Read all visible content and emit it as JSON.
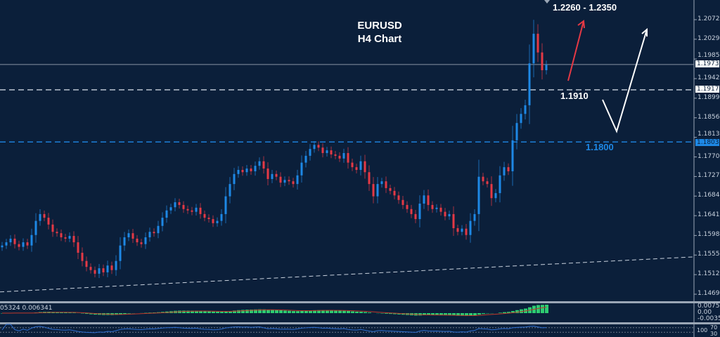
{
  "chart_data": {
    "type": "candlestick",
    "symbol": "EURUSD",
    "timeframe": "H4 Chart",
    "y_axis_ticks": [
      "1.20720",
      "1.20290",
      "1.19855",
      "1.19425",
      "1.18995",
      "1.18565",
      "1.18135",
      "1.17705",
      "1.17275",
      "1.16845",
      "1.16415",
      "1.15980",
      "1.15550",
      "1.15120",
      "1.14690"
    ],
    "ylim": [
      1.1456,
      1.21
    ],
    "closes": [
      1.1576,
      1.1583,
      1.1591,
      1.1579,
      1.1573,
      1.1583,
      1.1576,
      1.1599,
      1.163,
      1.1645,
      1.1637,
      1.1622,
      1.1606,
      1.1603,
      1.1594,
      1.1591,
      1.1597,
      1.1583,
      1.156,
      1.1542,
      1.1529,
      1.1522,
      1.1514,
      1.1526,
      1.1517,
      1.1532,
      1.1522,
      1.1542,
      1.1576,
      1.1594,
      1.1603,
      1.1591,
      1.1583,
      1.1579,
      1.1594,
      1.1606,
      1.1603,
      1.1619,
      1.1637,
      1.1653,
      1.166,
      1.1671,
      1.1665,
      1.1656,
      1.1653,
      1.165,
      1.1659,
      1.1645,
      1.1637,
      1.1634,
      1.1625,
      1.163,
      1.1645,
      1.1684,
      1.1711,
      1.1733,
      1.1742,
      1.1737,
      1.1745,
      1.1739,
      1.1751,
      1.1761,
      1.1745,
      1.1722,
      1.1733,
      1.1727,
      1.1714,
      1.172,
      1.1717,
      1.1711,
      1.173,
      1.1758,
      1.1773,
      1.1788,
      1.1797,
      1.1791,
      1.1779,
      1.1785,
      1.1776,
      1.1773,
      1.1767,
      1.1779,
      1.1758,
      1.1748,
      1.1742,
      1.1761,
      1.1737,
      1.1711,
      1.1684,
      1.1711,
      1.1717,
      1.1702,
      1.1696,
      1.1686,
      1.1676,
      1.1665,
      1.1656,
      1.1645,
      1.1634,
      1.1668,
      1.1686,
      1.1665,
      1.1656,
      1.1659,
      1.165,
      1.164,
      1.1645,
      1.1614,
      1.1606,
      1.1613,
      1.1599,
      1.163,
      1.1645,
      1.1727,
      1.1717,
      1.1711,
      1.168,
      1.1691,
      1.173,
      1.1748,
      1.1739,
      1.1807,
      1.1845,
      1.1865,
      1.1884,
      1.1976,
      1.2041,
      1.2,
      1.1961,
      1.1973
    ],
    "current_price": {
      "value": 1.19735,
      "label": "1.19735"
    },
    "levels": [
      {
        "value": 1.19179,
        "label": "1.19179",
        "style": "dashed",
        "color": "#c9d2de",
        "annotation": "1.1910"
      },
      {
        "value": 1.18034,
        "label": "1.18034",
        "style": "dashed",
        "color": "#1e88e5",
        "annotation": "1.1800"
      }
    ],
    "moving_average_line": {
      "start": 1.1474,
      "end": 1.1551,
      "style": "dashed",
      "color": "#c9d2de"
    },
    "target_annotation": "1.2260 - 1.2350",
    "colors": {
      "bull": "#1e88e5",
      "bear": "#e53945",
      "background": "#0b1f3a",
      "macd_hist": "#2ecc71",
      "macd_signal": "#c0392b",
      "rsi": "#2f6fd0"
    },
    "macd_panel": {
      "readout": "05324 0.006341",
      "ticks": [
        "0.007557",
        "0.00",
        "-0.00354"
      ]
    },
    "rsi_panel": {
      "ticks": [
        "100",
        "70",
        "30"
      ]
    }
  }
}
